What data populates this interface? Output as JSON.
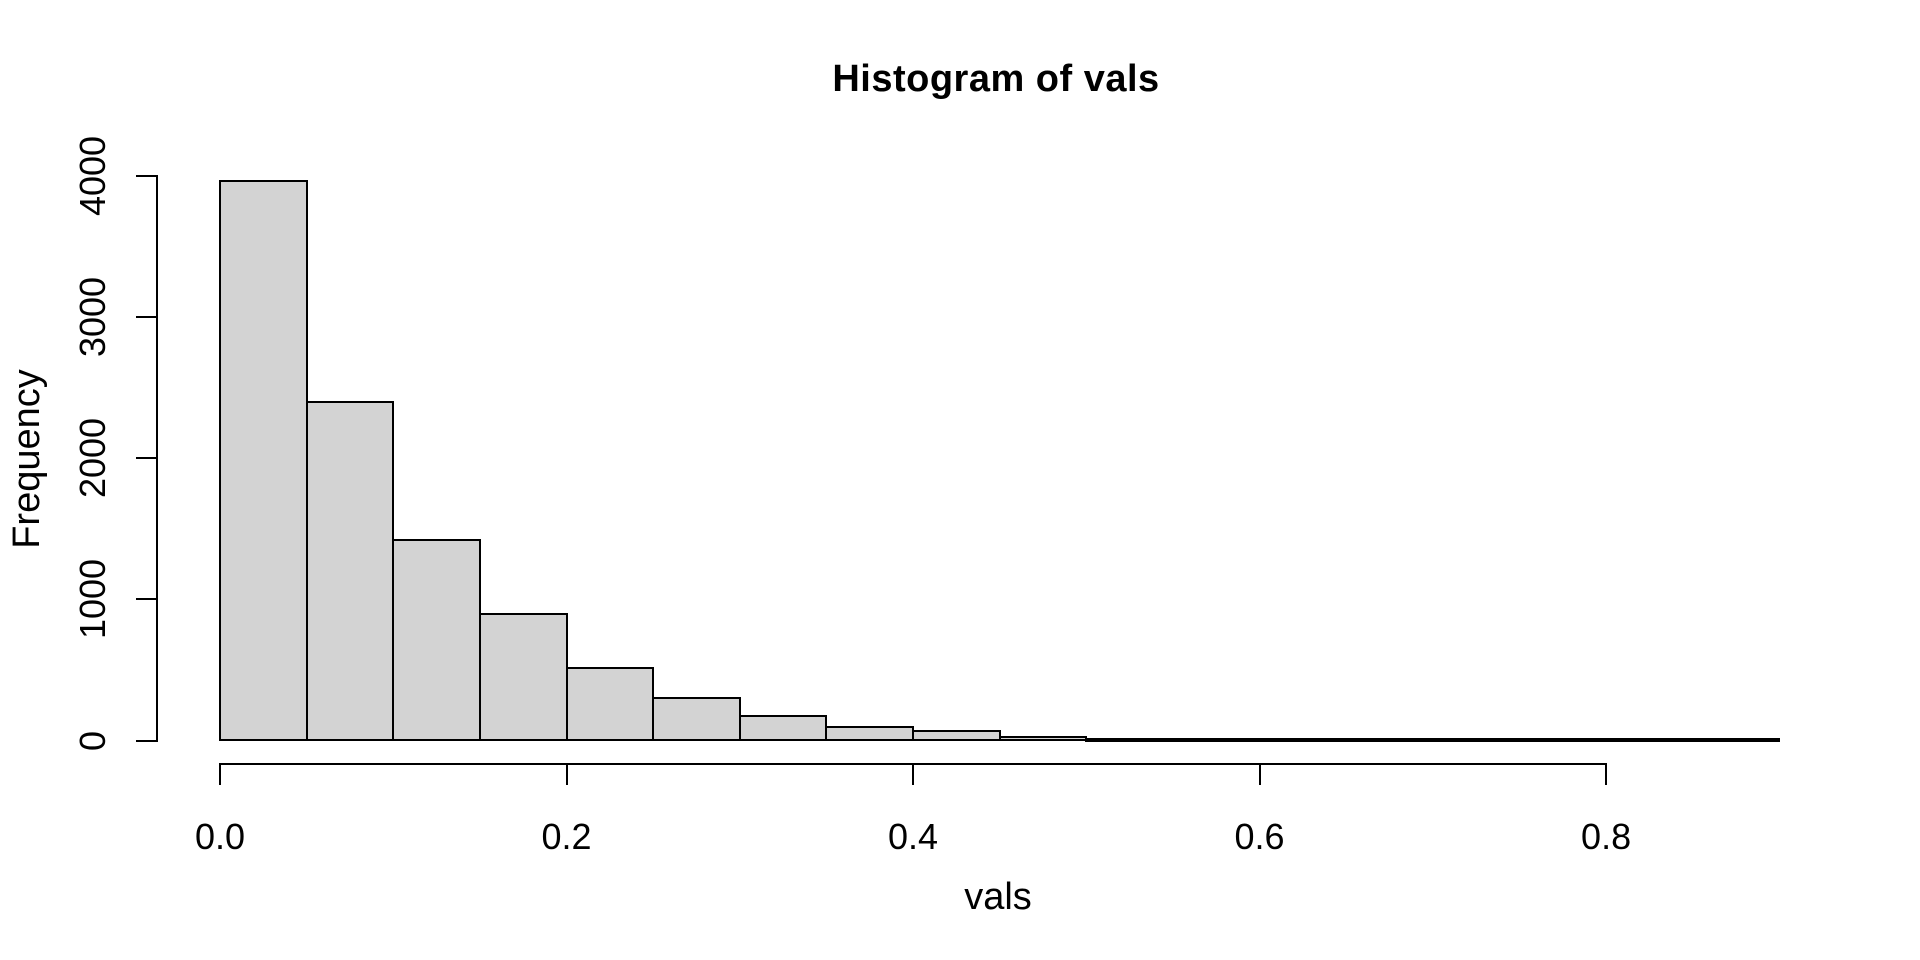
{
  "window": {
    "background": "#ffffff"
  },
  "chart_data": {
    "type": "bar",
    "subtype": "histogram",
    "title": "Histogram of vals",
    "xlabel": "vals",
    "ylabel": "Frequency",
    "bin_edges": [
      0.0,
      0.05,
      0.1,
      0.15,
      0.2,
      0.25,
      0.3,
      0.35,
      0.4,
      0.45,
      0.5,
      0.55,
      0.6,
      0.65,
      0.7,
      0.75,
      0.8,
      0.85,
      0.9
    ],
    "values": [
      3970,
      2404,
      1428,
      901,
      518,
      310,
      184,
      105,
      72,
      33,
      19,
      11,
      6,
      4,
      2,
      1,
      1,
      1
    ],
    "xlim": [
      0.0,
      0.9
    ],
    "ylim": [
      0,
      4000
    ],
    "x_ticks": [
      {
        "value": 0.0,
        "label": "0.0"
      },
      {
        "value": 0.2,
        "label": "0.2"
      },
      {
        "value": 0.4,
        "label": "0.4"
      },
      {
        "value": 0.6,
        "label": "0.6"
      },
      {
        "value": 0.8,
        "label": "0.8"
      }
    ],
    "y_ticks": [
      {
        "value": 0,
        "label": "0"
      },
      {
        "value": 1000,
        "label": "1000"
      },
      {
        "value": 2000,
        "label": "2000"
      },
      {
        "value": 3000,
        "label": "3000"
      },
      {
        "value": 4000,
        "label": "4000"
      }
    ],
    "grid": false,
    "legend": false,
    "bar_fill": "#d3d3d3",
    "bar_border": "#000000",
    "text_color": "#000000"
  }
}
